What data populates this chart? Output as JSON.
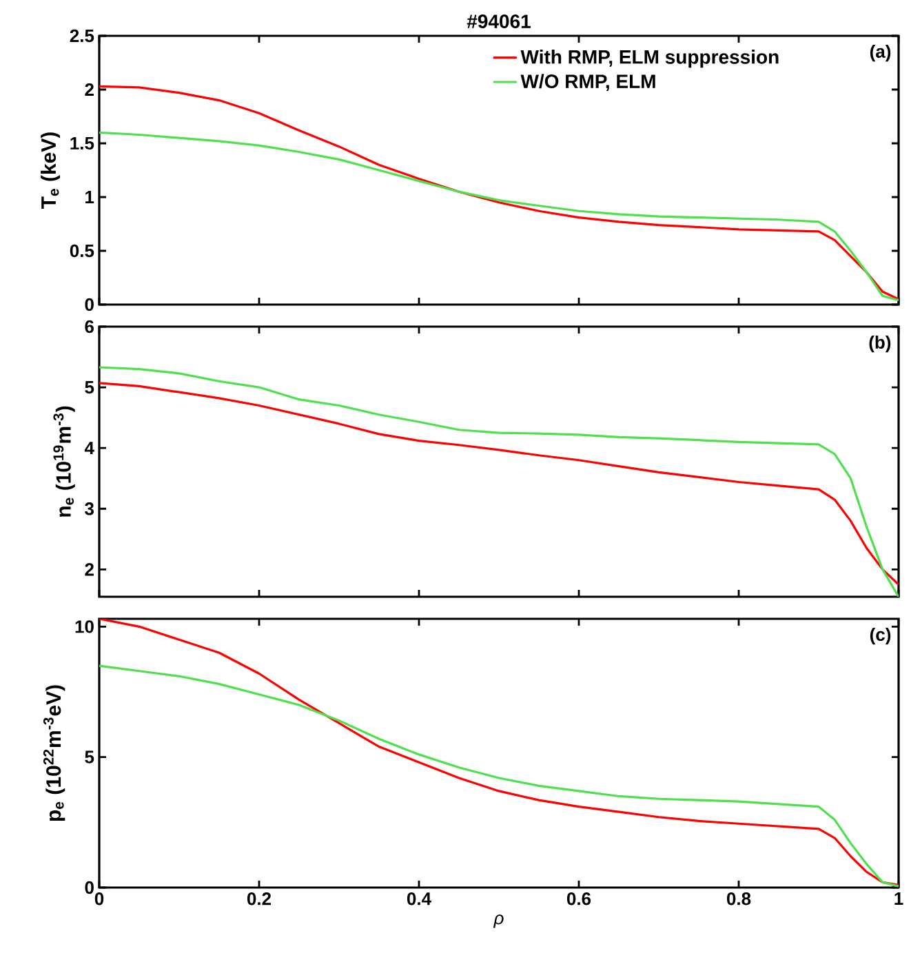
{
  "chart_data": [
    {
      "type": "line",
      "title": "#94061",
      "ylabel": "T$_{e}$ (keV)",
      "annotations": [
        "(a)"
      ],
      "xlim": [
        0,
        1
      ],
      "xticks": [
        0,
        0.2,
        0.4,
        0.6,
        0.8,
        1
      ],
      "ylim": [
        0,
        2.5
      ],
      "yticks": [
        0,
        0.5,
        1,
        1.5,
        2,
        2.5
      ],
      "tick_labels": "y",
      "legend": "top right",
      "x": [
        0,
        0.05,
        0.1,
        0.15,
        0.2,
        0.25,
        0.3,
        0.35,
        0.4,
        0.45,
        0.5,
        0.55,
        0.6,
        0.65,
        0.7,
        0.75,
        0.8,
        0.85,
        0.9,
        0.92,
        0.94,
        0.96,
        0.98,
        1.0
      ],
      "series": [
        {
          "name": "With RMP, ELM suppression",
          "color": "#ff0000",
          "values": [
            2.03,
            2.02,
            1.97,
            1.9,
            1.78,
            1.62,
            1.47,
            1.3,
            1.17,
            1.05,
            0.95,
            0.87,
            0.81,
            0.77,
            0.74,
            0.72,
            0.7,
            0.69,
            0.68,
            0.6,
            0.45,
            0.3,
            0.12,
            0.05
          ]
        },
        {
          "name": "W/O RMP, ELM",
          "color": "#4fdf4f",
          "values": [
            1.6,
            1.58,
            1.55,
            1.52,
            1.48,
            1.42,
            1.35,
            1.25,
            1.15,
            1.05,
            0.97,
            0.92,
            0.87,
            0.84,
            0.82,
            0.81,
            0.8,
            0.79,
            0.77,
            0.68,
            0.5,
            0.3,
            0.08,
            0.04
          ]
        }
      ]
    },
    {
      "type": "line",
      "ylabel": "n$_{e}$ (10$^{19}$m$^{-3}$)",
      "annotations": [
        "(b)"
      ],
      "xlim": [
        0,
        1
      ],
      "xticks": [
        0,
        0.2,
        0.4,
        0.6,
        0.8,
        1
      ],
      "ylim": [
        1.55,
        6
      ],
      "yticks": [
        2,
        3,
        4,
        5,
        6
      ],
      "tick_labels": "y",
      "x": [
        0,
        0.05,
        0.1,
        0.15,
        0.2,
        0.25,
        0.3,
        0.35,
        0.4,
        0.45,
        0.5,
        0.55,
        0.6,
        0.65,
        0.7,
        0.75,
        0.8,
        0.85,
        0.9,
        0.92,
        0.94,
        0.96,
        0.98,
        1.0
      ],
      "series": [
        {
          "color": "#ff0000",
          "values": [
            5.07,
            5.02,
            4.92,
            4.82,
            4.7,
            4.55,
            4.4,
            4.23,
            4.12,
            4.05,
            3.97,
            3.88,
            3.8,
            3.7,
            3.6,
            3.52,
            3.44,
            3.38,
            3.32,
            3.15,
            2.8,
            2.35,
            2.0,
            1.75
          ]
        },
        {
          "color": "#4fdf4f",
          "values": [
            5.33,
            5.3,
            5.23,
            5.1,
            5.0,
            4.8,
            4.7,
            4.55,
            4.43,
            4.3,
            4.25,
            4.24,
            4.22,
            4.18,
            4.16,
            4.13,
            4.1,
            4.08,
            4.06,
            3.9,
            3.5,
            2.7,
            2.0,
            1.55
          ]
        }
      ]
    },
    {
      "type": "line",
      "xlabel": "ρ",
      "ylabel": "p$_{e}$ (10$^{22}$m$^{-3}$eV)",
      "annotations": [
        "(c)"
      ],
      "xlim": [
        0,
        1
      ],
      "xticks": [
        0,
        0.2,
        0.4,
        0.6,
        0.8,
        1
      ],
      "ylim": [
        0,
        10.3
      ],
      "yticks": [
        0,
        5,
        10
      ],
      "x": [
        0,
        0.05,
        0.1,
        0.15,
        0.2,
        0.25,
        0.3,
        0.35,
        0.4,
        0.45,
        0.5,
        0.55,
        0.6,
        0.65,
        0.7,
        0.75,
        0.8,
        0.85,
        0.9,
        0.92,
        0.94,
        0.96,
        0.98,
        1.0
      ],
      "series": [
        {
          "color": "#ff0000",
          "values": [
            10.3,
            10.0,
            9.5,
            9.0,
            8.2,
            7.2,
            6.3,
            5.4,
            4.8,
            4.2,
            3.7,
            3.35,
            3.1,
            2.9,
            2.7,
            2.55,
            2.45,
            2.35,
            2.25,
            1.9,
            1.2,
            0.6,
            0.2,
            0.1
          ]
        },
        {
          "color": "#4fdf4f",
          "values": [
            8.5,
            8.3,
            8.1,
            7.8,
            7.4,
            7.0,
            6.4,
            5.7,
            5.1,
            4.6,
            4.2,
            3.9,
            3.7,
            3.5,
            3.4,
            3.35,
            3.3,
            3.2,
            3.1,
            2.6,
            1.7,
            0.9,
            0.2,
            0.05
          ]
        }
      ]
    }
  ]
}
